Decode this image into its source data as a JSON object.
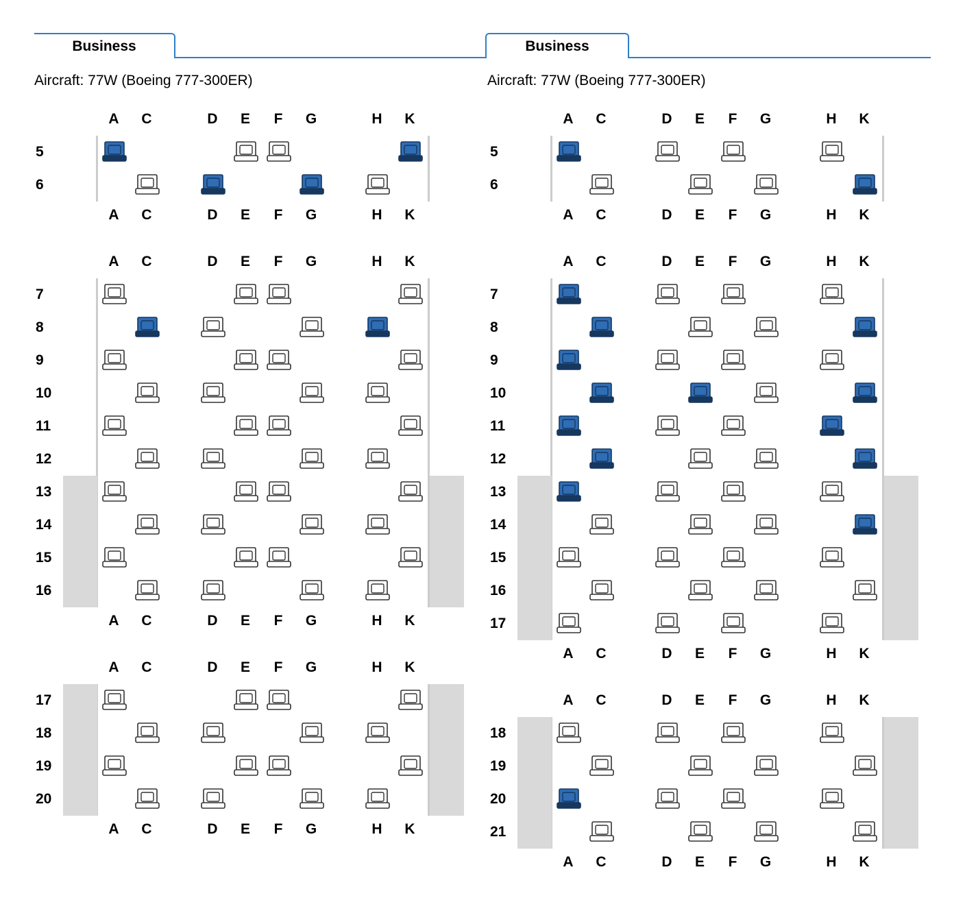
{
  "colors": {
    "occupied": "#2f6db5",
    "occupied_dark": "#16375e",
    "available": "#ffffff",
    "seat_outline": "#333333",
    "tab_border": "#2f7fc7"
  },
  "panels": [
    {
      "tab_label": "Business",
      "aircraft_text": "Aircraft: 77W (Boeing 777-300ER)",
      "columns": [
        "A",
        "C",
        "D",
        "E",
        "F",
        "G",
        "H",
        "K"
      ],
      "sections": [
        {
          "rows": [
            {
              "num": "5",
              "seats": {
                "A": "occupied",
                "E": "available",
                "F": "available",
                "K": "occupied"
              }
            },
            {
              "num": "6",
              "seats": {
                "C": "available",
                "D": "occupied",
                "G": "occupied",
                "H": "available"
              }
            }
          ],
          "wing_rows": []
        },
        {
          "rows": [
            {
              "num": "7",
              "seats": {
                "A": "available",
                "E": "available",
                "F": "available",
                "K": "available"
              }
            },
            {
              "num": "8",
              "seats": {
                "C": "occupied",
                "D": "available",
                "G": "available",
                "H": "occupied"
              }
            },
            {
              "num": "9",
              "seats": {
                "A": "available",
                "E": "available",
                "F": "available",
                "K": "available"
              }
            },
            {
              "num": "10",
              "seats": {
                "C": "available",
                "D": "available",
                "G": "available",
                "H": "available"
              }
            },
            {
              "num": "11",
              "seats": {
                "A": "available",
                "E": "available",
                "F": "available",
                "K": "available"
              }
            },
            {
              "num": "12",
              "seats": {
                "C": "available",
                "D": "available",
                "G": "available",
                "H": "available"
              }
            },
            {
              "num": "13",
              "seats": {
                "A": "available",
                "E": "available",
                "F": "available",
                "K": "available"
              }
            },
            {
              "num": "14",
              "seats": {
                "C": "available",
                "D": "available",
                "G": "available",
                "H": "available"
              }
            },
            {
              "num": "15",
              "seats": {
                "A": "available",
                "E": "available",
                "F": "available",
                "K": "available"
              }
            },
            {
              "num": "16",
              "seats": {
                "C": "available",
                "D": "available",
                "G": "available",
                "H": "available"
              }
            }
          ],
          "wing_rows": [
            "13",
            "14",
            "15",
            "16"
          ]
        },
        {
          "rows": [
            {
              "num": "17",
              "seats": {
                "A": "available",
                "E": "available",
                "F": "available",
                "K": "available"
              }
            },
            {
              "num": "18",
              "seats": {
                "C": "available",
                "D": "available",
                "G": "available",
                "H": "available"
              }
            },
            {
              "num": "19",
              "seats": {
                "A": "available",
                "E": "available",
                "F": "available",
                "K": "available"
              }
            },
            {
              "num": "20",
              "seats": {
                "C": "available",
                "D": "available",
                "G": "available",
                "H": "available"
              }
            }
          ],
          "wing_rows": [
            "17",
            "18",
            "19",
            "20"
          ]
        }
      ]
    },
    {
      "tab_label": "Business",
      "aircraft_text": "Aircraft: 77W (Boeing 777-300ER)",
      "columns": [
        "A",
        "C",
        "D",
        "E",
        "F",
        "G",
        "H",
        "K"
      ],
      "sections": [
        {
          "rows": [
            {
              "num": "5",
              "seats": {
                "A": "occupied",
                "D": "available",
                "F": "available",
                "H": "available"
              }
            },
            {
              "num": "6",
              "seats": {
                "C": "available",
                "E": "available",
                "G": "available",
                "K": "occupied"
              }
            }
          ],
          "wing_rows": []
        },
        {
          "rows": [
            {
              "num": "7",
              "seats": {
                "A": "occupied",
                "D": "available",
                "F": "available",
                "H": "available"
              }
            },
            {
              "num": "8",
              "seats": {
                "C": "occupied",
                "E": "available",
                "G": "available",
                "K": "occupied"
              }
            },
            {
              "num": "9",
              "seats": {
                "A": "occupied",
                "D": "available",
                "F": "available",
                "H": "available"
              }
            },
            {
              "num": "10",
              "seats": {
                "C": "occupied",
                "E": "occupied",
                "G": "available",
                "K": "occupied"
              }
            },
            {
              "num": "11",
              "seats": {
                "A": "occupied",
                "D": "available",
                "F": "available",
                "H": "occupied"
              }
            },
            {
              "num": "12",
              "seats": {
                "C": "occupied",
                "E": "available",
                "G": "available",
                "K": "occupied"
              }
            },
            {
              "num": "13",
              "seats": {
                "A": "occupied",
                "D": "available",
                "F": "available",
                "H": "available"
              }
            },
            {
              "num": "14",
              "seats": {
                "C": "available",
                "E": "available",
                "G": "available",
                "K": "occupied"
              }
            },
            {
              "num": "15",
              "seats": {
                "A": "available",
                "D": "available",
                "F": "available",
                "H": "available"
              }
            },
            {
              "num": "16",
              "seats": {
                "C": "available",
                "E": "available",
                "G": "available",
                "K": "available"
              }
            },
            {
              "num": "17",
              "seats": {
                "A": "available",
                "D": "available",
                "F": "available",
                "H": "available"
              }
            }
          ],
          "wing_rows": [
            "13",
            "14",
            "15",
            "16",
            "17"
          ]
        },
        {
          "rows": [
            {
              "num": "18",
              "seats": {
                "A": "available",
                "D": "available",
                "F": "available",
                "H": "available"
              }
            },
            {
              "num": "19",
              "seats": {
                "C": "available",
                "E": "available",
                "G": "available",
                "K": "available"
              }
            },
            {
              "num": "20",
              "seats": {
                "A": "occupied",
                "D": "available",
                "F": "available",
                "H": "available"
              }
            },
            {
              "num": "21",
              "seats": {
                "C": "available",
                "E": "available",
                "G": "available",
                "K": "available"
              }
            }
          ],
          "wing_rows": [
            "18",
            "19",
            "20",
            "21"
          ]
        }
      ]
    }
  ]
}
